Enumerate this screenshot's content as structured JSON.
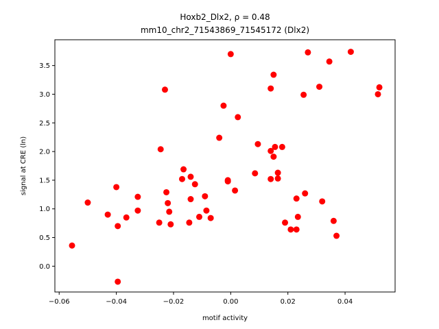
{
  "chart_data": {
    "type": "scatter",
    "title_line1": "Hoxb2_Dlx2, ρ = 0.48",
    "title_line2": "mm10_chr2_71543869_71545172 (Dlx2)",
    "xlabel": "motif activity",
    "ylabel": "signal at CRE (ln)",
    "xlim": [
      -0.0615,
      0.0575
    ],
    "ylim": [
      -0.45,
      3.95
    ],
    "xticks": [
      -0.06,
      -0.04,
      -0.02,
      0.0,
      0.02,
      0.04
    ],
    "xtick_labels": [
      "−0.06",
      "−0.04",
      "−0.02",
      "0.00",
      "0.02",
      "0.04"
    ],
    "yticks": [
      0.0,
      0.5,
      1.0,
      1.5,
      2.0,
      2.5,
      3.0,
      3.5
    ],
    "ytick_labels": [
      "0.0",
      "0.5",
      "1.0",
      "1.5",
      "2.0",
      "2.5",
      "3.0",
      "3.5"
    ],
    "grid": false,
    "marker_color": "#ff0000",
    "points": [
      {
        "x": -0.0555,
        "y": 0.36
      },
      {
        "x": -0.05,
        "y": 1.11
      },
      {
        "x": -0.043,
        "y": 0.9
      },
      {
        "x": -0.04,
        "y": 1.38
      },
      {
        "x": -0.0395,
        "y": 0.7
      },
      {
        "x": -0.0395,
        "y": -0.27
      },
      {
        "x": -0.0365,
        "y": 0.85
      },
      {
        "x": -0.0325,
        "y": 1.21
      },
      {
        "x": -0.0325,
        "y": 0.97
      },
      {
        "x": -0.025,
        "y": 0.76
      },
      {
        "x": -0.0245,
        "y": 2.04
      },
      {
        "x": -0.023,
        "y": 3.08
      },
      {
        "x": -0.0225,
        "y": 1.29
      },
      {
        "x": -0.022,
        "y": 1.1
      },
      {
        "x": -0.0215,
        "y": 0.95
      },
      {
        "x": -0.021,
        "y": 0.73
      },
      {
        "x": -0.017,
        "y": 1.52
      },
      {
        "x": -0.0165,
        "y": 1.69
      },
      {
        "x": -0.0145,
        "y": 0.76
      },
      {
        "x": -0.014,
        "y": 1.56
      },
      {
        "x": -0.014,
        "y": 1.17
      },
      {
        "x": -0.0125,
        "y": 1.43
      },
      {
        "x": -0.011,
        "y": 0.86
      },
      {
        "x": -0.009,
        "y": 1.22
      },
      {
        "x": -0.0085,
        "y": 0.97
      },
      {
        "x": -0.007,
        "y": 0.84
      },
      {
        "x": -0.004,
        "y": 2.24
      },
      {
        "x": -0.0025,
        "y": 2.8
      },
      {
        "x": -0.001,
        "y": 1.48
      },
      {
        "x": -0.001,
        "y": 1.5
      },
      {
        "x": 0.0,
        "y": 3.7
      },
      {
        "x": 0.0015,
        "y": 1.32
      },
      {
        "x": 0.0025,
        "y": 2.6
      },
      {
        "x": 0.0085,
        "y": 1.62
      },
      {
        "x": 0.0095,
        "y": 2.13
      },
      {
        "x": 0.014,
        "y": 3.1
      },
      {
        "x": 0.014,
        "y": 2.01
      },
      {
        "x": 0.014,
        "y": 1.52
      },
      {
        "x": 0.015,
        "y": 1.91
      },
      {
        "x": 0.015,
        "y": 3.34
      },
      {
        "x": 0.0155,
        "y": 2.08
      },
      {
        "x": 0.0165,
        "y": 1.53
      },
      {
        "x": 0.0165,
        "y": 1.63
      },
      {
        "x": 0.018,
        "y": 2.08
      },
      {
        "x": 0.019,
        "y": 0.76
      },
      {
        "x": 0.021,
        "y": 0.64
      },
      {
        "x": 0.023,
        "y": 1.18
      },
      {
        "x": 0.023,
        "y": 0.64
      },
      {
        "x": 0.0235,
        "y": 0.86
      },
      {
        "x": 0.0255,
        "y": 2.99
      },
      {
        "x": 0.026,
        "y": 1.27
      },
      {
        "x": 0.027,
        "y": 3.73
      },
      {
        "x": 0.031,
        "y": 3.13
      },
      {
        "x": 0.032,
        "y": 1.13
      },
      {
        "x": 0.0345,
        "y": 3.57
      },
      {
        "x": 0.036,
        "y": 0.79
      },
      {
        "x": 0.037,
        "y": 0.53
      },
      {
        "x": 0.042,
        "y": 3.74
      },
      {
        "x": 0.0515,
        "y": 3.0
      },
      {
        "x": 0.052,
        "y": 3.12
      }
    ]
  }
}
